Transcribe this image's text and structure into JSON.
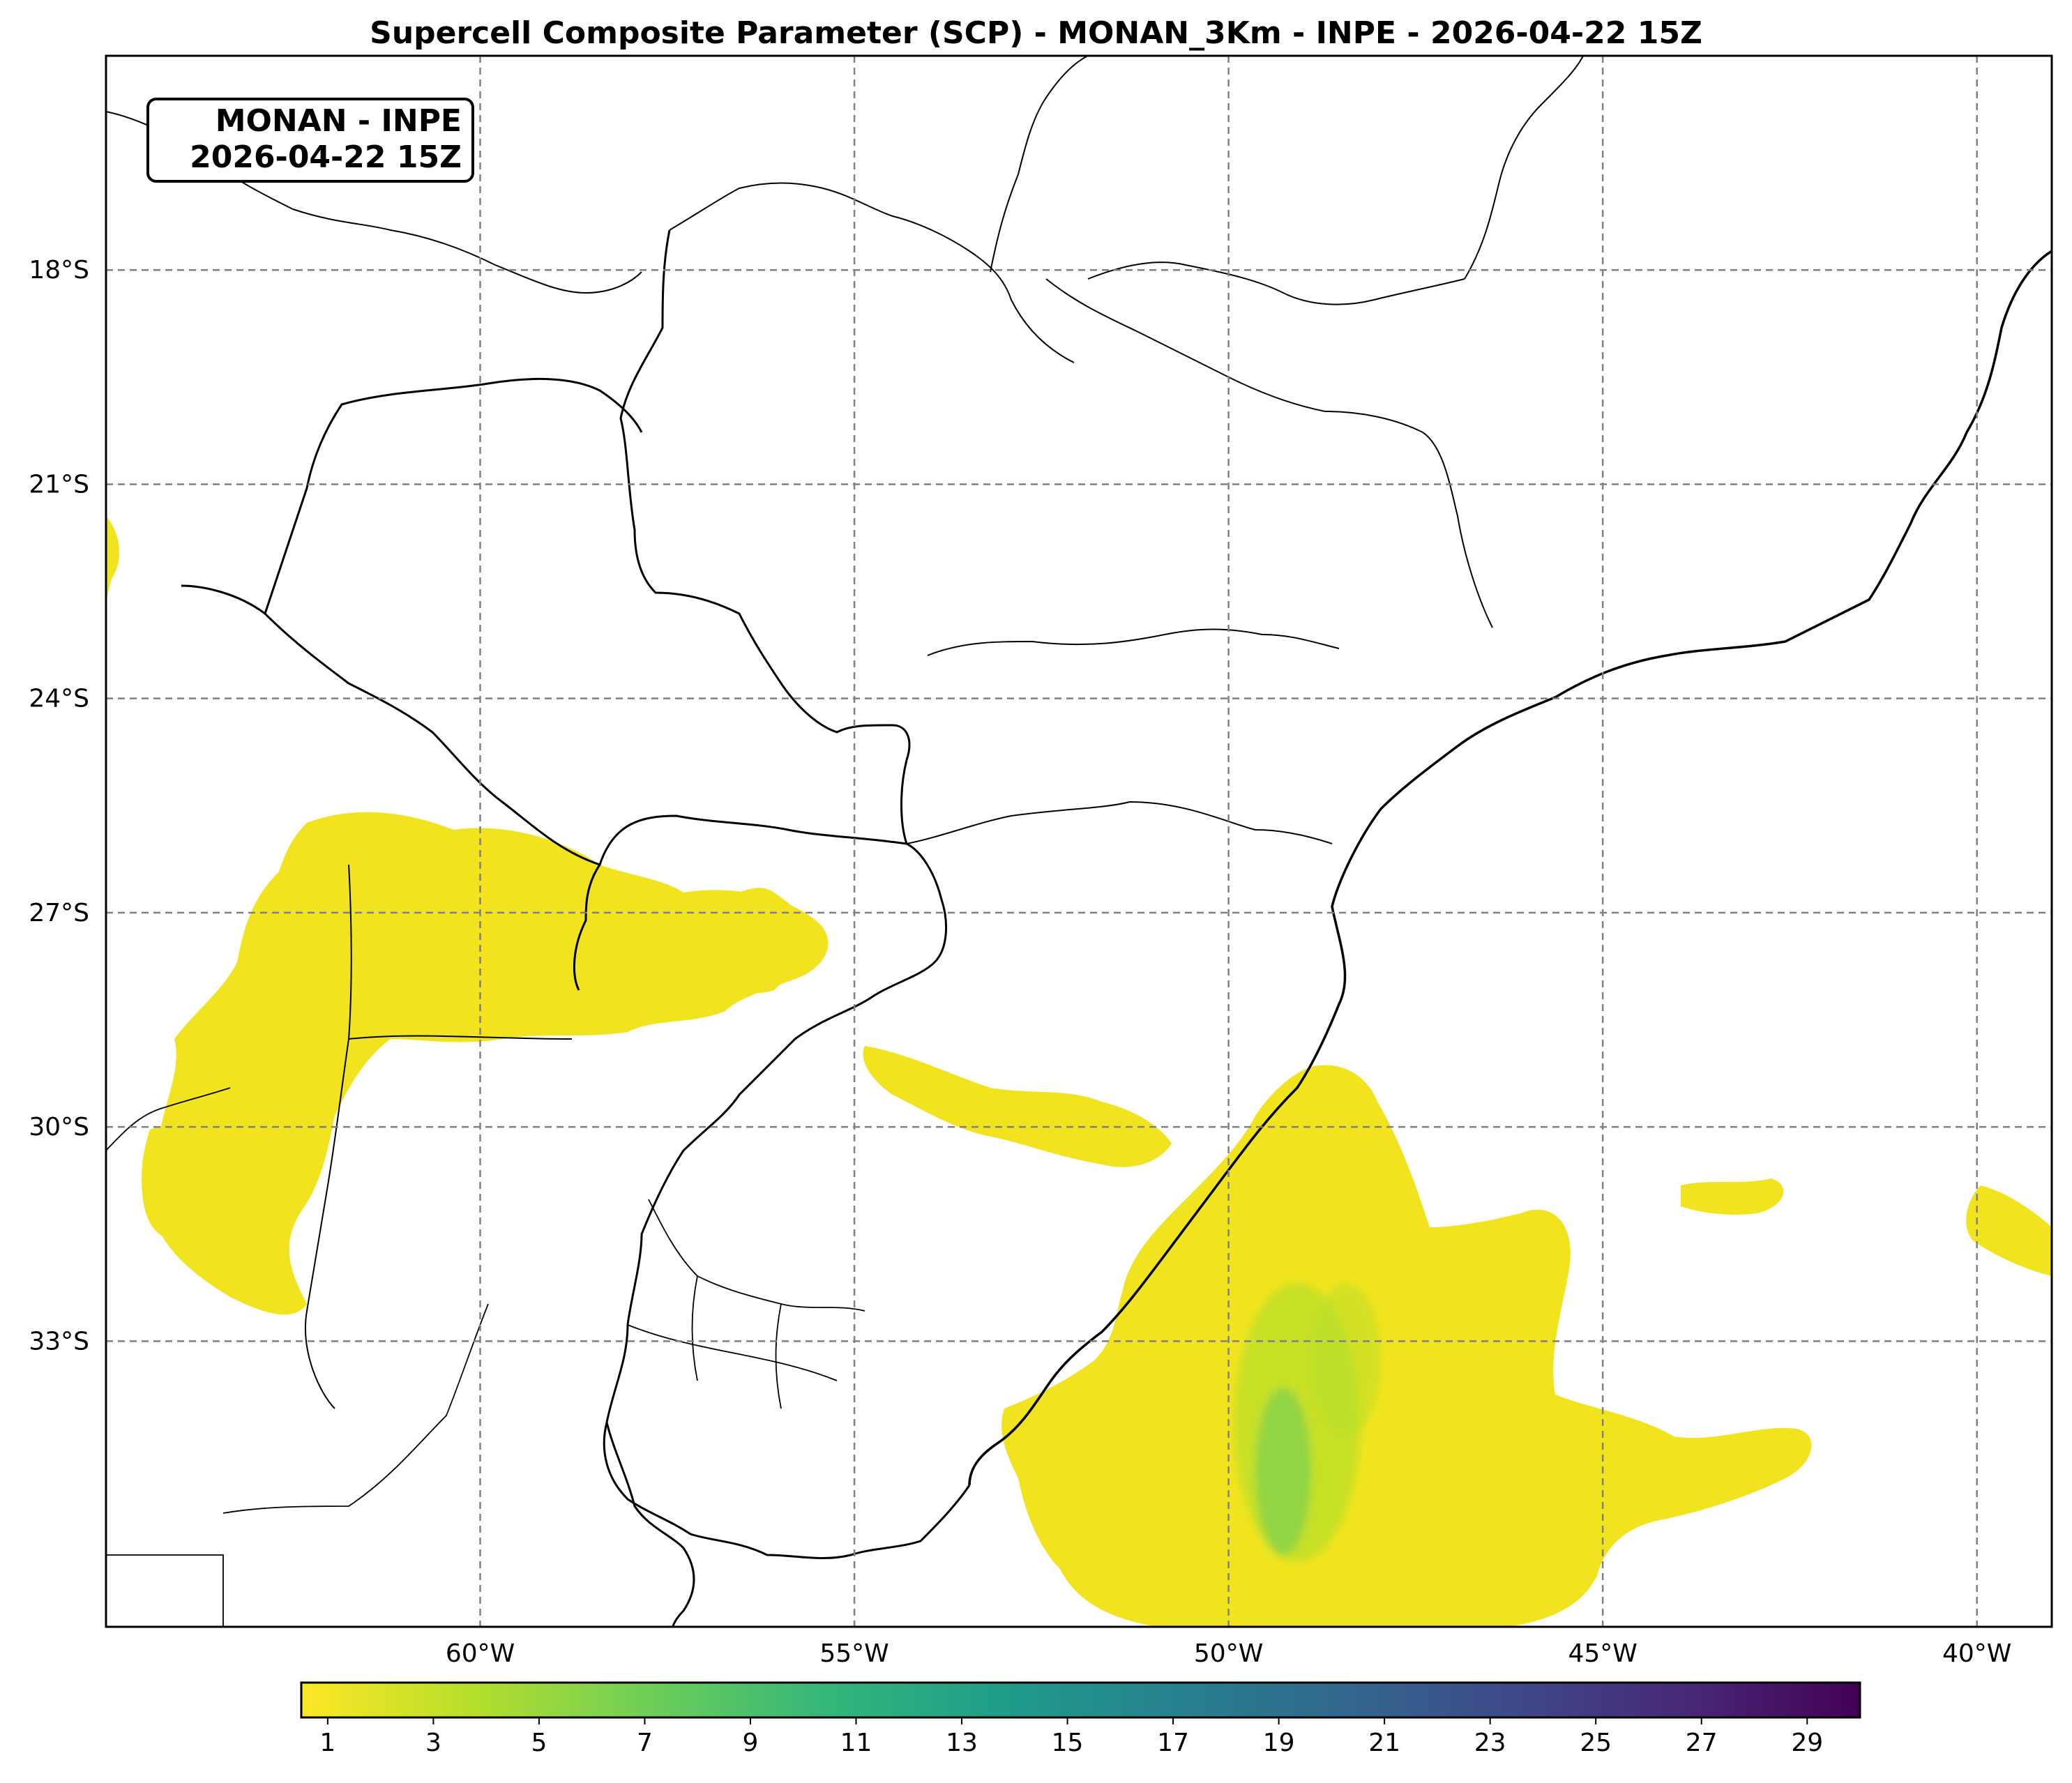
{
  "title": "Supercell Composite Parameter (SCP) - MONAN_3Km - INPE - 2026-04-22 15Z",
  "stamp": {
    "line1": "MONAN - INPE",
    "line2": "2026-04-22 15Z"
  },
  "map": {
    "lon_range": [
      -65,
      -39
    ],
    "lat_range": [
      -37,
      -15
    ],
    "lon_ticks": [
      {
        "value": -60,
        "label": "60°W"
      },
      {
        "value": -55,
        "label": "55°W"
      },
      {
        "value": -50,
        "label": "50°W"
      },
      {
        "value": -45,
        "label": "45°W"
      },
      {
        "value": -40,
        "label": "40°W"
      }
    ],
    "lat_ticks": [
      {
        "value": -18,
        "label": "18°S"
      },
      {
        "value": -21,
        "label": "21°S"
      },
      {
        "value": -24,
        "label": "24°S"
      },
      {
        "value": -27,
        "label": "27°S"
      },
      {
        "value": -30,
        "label": "30°S"
      },
      {
        "value": -33,
        "label": "33°S"
      }
    ],
    "gridlines": "dashed gray",
    "field_colormap": "viridis_r",
    "field_low_color": "#f1e41f",
    "field_high_color": "#23a883",
    "line_color": "#000000"
  },
  "colorbar": {
    "min": 0.5,
    "max": 30,
    "ticks": [
      "1",
      "3",
      "5",
      "7",
      "9",
      "11",
      "13",
      "15",
      "17",
      "19",
      "21",
      "23",
      "25",
      "27",
      "29"
    ],
    "colormap": [
      "#fde725",
      "#b5de2b",
      "#6ece58",
      "#35b779",
      "#1f9e89",
      "#26828e",
      "#31688e",
      "#3e4989",
      "#482878",
      "#440154"
    ]
  }
}
